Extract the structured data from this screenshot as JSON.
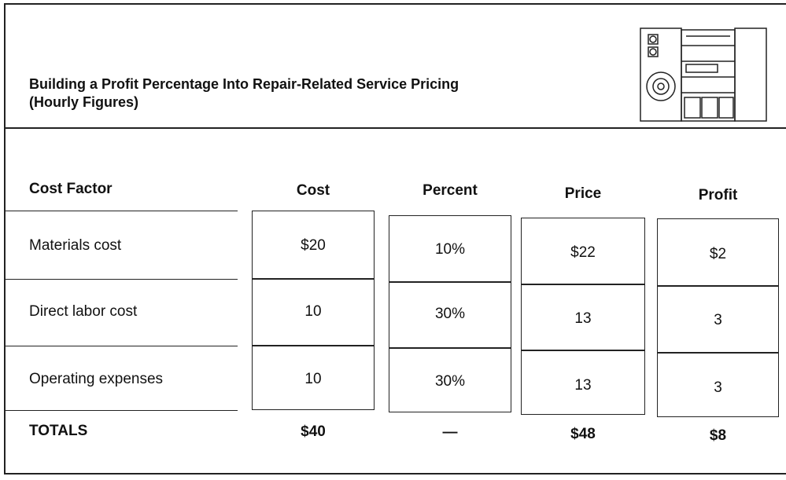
{
  "header": {
    "title": "Building a Profit Percentage Into Repair-Related Service Pricing",
    "subtitle": "(Hourly Figures)"
  },
  "table": {
    "columns": [
      "Cost Factor",
      "Cost",
      "Percent",
      "Price",
      "Profit"
    ],
    "rows": [
      [
        "Materials cost",
        "$20",
        "10%",
        "$22",
        "$2"
      ],
      [
        "Direct labor cost",
        "10",
        "30%",
        "13",
        "3"
      ],
      [
        "Operating expenses",
        "10",
        "30%",
        "13",
        "3"
      ]
    ],
    "totals": [
      "TOTALS",
      "$40",
      "—",
      "$48",
      "$8"
    ]
  }
}
